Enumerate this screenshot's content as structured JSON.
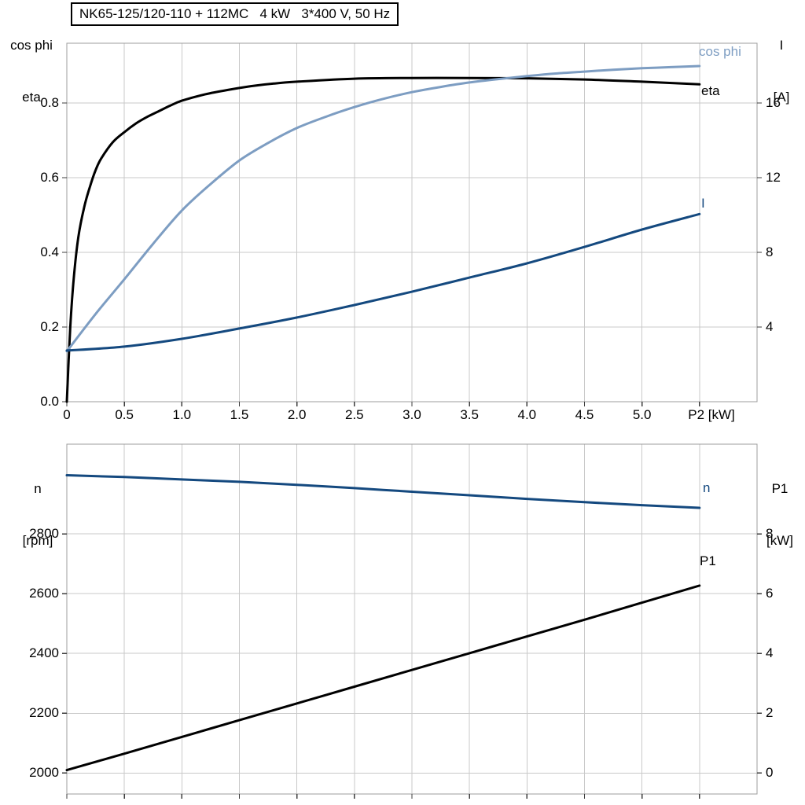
{
  "colors": {
    "black": "#000000",
    "light_blue": "#7D9DC2",
    "dark_blue": "#14497F",
    "grid": "#C9C9C9",
    "frame": "#9C9C9C",
    "tick": "#3C3C3C"
  },
  "top_chart": {
    "y_left_title_line1": "cos phi",
    "y_left_title_line2": "eta",
    "y_right_title_line1": "I",
    "y_right_title_line2": "[A]"
  },
  "bottom_chart": {
    "y_left_title_line1": "n",
    "y_left_title_line2": "[rpm]",
    "y_right_title_line1": "P1",
    "y_right_title_line2": "[kW]"
  },
  "chart_data": [
    {
      "type": "line",
      "title": "NK65-125/120-110 + 112MC   4 kW   3*400 V, 50 Hz",
      "xlabel": "P2 [kW]",
      "xlim": [
        0,
        6.0
      ],
      "x_grid_step": 0.5,
      "x_ticks": [
        0,
        0.5,
        1.0,
        1.5,
        2.0,
        2.5,
        3.0,
        3.5,
        4.0,
        4.5,
        5.0
      ],
      "x_tick_labels": [
        "0",
        "0.5",
        "1.0",
        "1.5",
        "2.0",
        "2.5",
        "3.0",
        "3.5",
        "4.0",
        "4.5",
        "5.0"
      ],
      "left_axis": {
        "title": "cos phi / eta",
        "lim": [
          0,
          0.96
        ],
        "ticks": [
          0,
          0.2,
          0.4,
          0.6,
          0.8
        ],
        "tick_labels": [
          "0.0",
          "0.2",
          "0.4",
          "0.6",
          "0.8"
        ]
      },
      "right_axis": {
        "title": "I [A]",
        "lim": [
          0,
          19.2
        ],
        "ticks": [
          4,
          8,
          12,
          16
        ],
        "tick_labels": [
          "4",
          "8",
          "12",
          "16"
        ]
      },
      "legend_position": "right-of-curves",
      "grid": true,
      "series": [
        {
          "name": "eta",
          "axis": "left",
          "color": "black",
          "x": [
            0,
            0.03,
            0.06,
            0.1,
            0.15,
            0.2,
            0.25,
            0.3,
            0.4,
            0.5,
            0.6,
            0.7,
            0.8,
            0.9,
            1.0,
            1.2,
            1.4,
            1.6,
            1.8,
            2.0,
            2.5,
            3.0,
            3.5,
            4.0,
            4.5,
            5.0,
            5.5
          ],
          "y": [
            0,
            0.2,
            0.33,
            0.44,
            0.52,
            0.575,
            0.62,
            0.652,
            0.695,
            0.722,
            0.745,
            0.763,
            0.778,
            0.793,
            0.806,
            0.823,
            0.835,
            0.845,
            0.852,
            0.857,
            0.865,
            0.867,
            0.867,
            0.866,
            0.863,
            0.857,
            0.85
          ]
        },
        {
          "name": "cos phi",
          "axis": "left",
          "color": "light_blue",
          "x": [
            0,
            0.25,
            0.5,
            0.75,
            1.0,
            1.25,
            1.5,
            1.75,
            2.0,
            2.25,
            2.5,
            2.75,
            3.0,
            3.25,
            3.5,
            3.75,
            4.0,
            4.25,
            4.5,
            4.75,
            5.0,
            5.25,
            5.5
          ],
          "y": [
            0.135,
            0.235,
            0.328,
            0.423,
            0.512,
            0.583,
            0.646,
            0.693,
            0.733,
            0.763,
            0.789,
            0.811,
            0.829,
            0.843,
            0.855,
            0.864,
            0.872,
            0.879,
            0.884,
            0.889,
            0.893,
            0.896,
            0.899
          ]
        },
        {
          "name": "I",
          "axis": "right",
          "color": "dark_blue",
          "x": [
            0,
            0.5,
            1.0,
            1.5,
            2.0,
            2.5,
            3.0,
            3.5,
            4.0,
            4.5,
            5.0,
            5.5
          ],
          "y": [
            2.74,
            2.95,
            3.37,
            3.92,
            4.51,
            5.18,
            5.89,
            6.65,
            7.41,
            8.29,
            9.22,
            10.05
          ]
        }
      ]
    },
    {
      "type": "line",
      "title": "",
      "xlabel": "",
      "xlim": [
        0,
        6.0
      ],
      "x_grid_step": 0.5,
      "x_ticks": [],
      "x_tick_labels": [],
      "left_axis": {
        "title": "n [rpm]",
        "lim": [
          1930,
          3100
        ],
        "ticks": [
          2000,
          2200,
          2400,
          2600,
          2800
        ],
        "tick_labels": [
          "2000",
          "2200",
          "2400",
          "2600",
          "2800"
        ]
      },
      "right_axis": {
        "title": "P1 [kW]",
        "lim": [
          -0.7,
          11.0
        ],
        "ticks": [
          0,
          2,
          4,
          6,
          8
        ],
        "tick_labels": [
          "0",
          "2",
          "4",
          "6",
          "8"
        ]
      },
      "grid": true,
      "series": [
        {
          "name": "n",
          "axis": "left",
          "color": "dark_blue",
          "x": [
            0,
            0.5,
            1.0,
            1.5,
            2.0,
            2.5,
            3.0,
            3.5,
            4.0,
            4.5,
            5.0,
            5.5
          ],
          "y": [
            2996,
            2990,
            2982,
            2974,
            2964,
            2953,
            2941,
            2929,
            2917,
            2906,
            2896,
            2887
          ]
        },
        {
          "name": "P1",
          "axis": "right",
          "color": "black",
          "x": [
            0,
            0.5,
            1.0,
            1.5,
            2.0,
            2.5,
            3.0,
            3.5,
            4.0,
            4.5,
            5.0,
            5.5
          ],
          "y": [
            0.1,
            0.65,
            1.21,
            1.77,
            2.33,
            2.89,
            3.45,
            4.01,
            4.57,
            5.13,
            5.7,
            6.27
          ]
        }
      ]
    }
  ]
}
